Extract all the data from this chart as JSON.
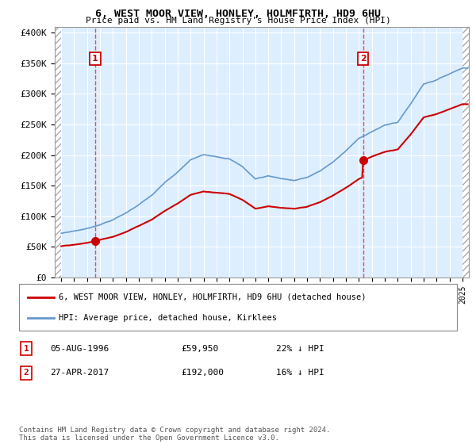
{
  "title": "6, WEST MOOR VIEW, HONLEY, HOLMFIRTH, HD9 6HU",
  "subtitle": "Price paid vs. HM Land Registry's House Price Index (HPI)",
  "sale1_year": 1996.625,
  "sale1_price": 59950,
  "sale2_year": 2017.33,
  "sale2_price": 192000,
  "legend_line1": "6, WEST MOOR VIEW, HONLEY, HOLMFIRTH, HD9 6HU (detached house)",
  "legend_line2": "HPI: Average price, detached house, Kirklees",
  "table_row1_num": "1",
  "table_row1_date": "05-AUG-1996",
  "table_row1_price": "£59,950",
  "table_row1_hpi": "22% ↓ HPI",
  "table_row2_num": "2",
  "table_row2_date": "27-APR-2017",
  "table_row2_price": "£192,000",
  "table_row2_hpi": "16% ↓ HPI",
  "footer": "Contains HM Land Registry data © Crown copyright and database right 2024.\nThis data is licensed under the Open Government Licence v3.0.",
  "xmin": 1993.5,
  "xmax": 2025.5,
  "ymin": 0,
  "ymax": 410000,
  "plot_bg": "#ddeeff",
  "grid_color": "#ffffff",
  "red_line_color": "#cc0000",
  "blue_line_color": "#6699cc",
  "vline_color": "#ff4444",
  "yticks": [
    0,
    50000,
    100000,
    150000,
    200000,
    250000,
    300000,
    350000,
    400000
  ],
  "ytick_labels": [
    "£0",
    "£50K",
    "£100K",
    "£150K",
    "£200K",
    "£250K",
    "£300K",
    "£350K",
    "£400K"
  ],
  "hpi_years": [
    1994,
    1995,
    1996,
    1997,
    1998,
    1999,
    2000,
    2001,
    2002,
    2003,
    2004,
    2005,
    2006,
    2007,
    2008,
    2009,
    2010,
    2011,
    2012,
    2013,
    2014,
    2015,
    2016,
    2017,
    2018,
    2019,
    2020,
    2021,
    2022,
    2023,
    2024,
    2025
  ],
  "hpi_vals": [
    72000,
    76000,
    80000,
    87000,
    95000,
    106000,
    120000,
    135000,
    155000,
    172000,
    192000,
    200000,
    198000,
    195000,
    182000,
    162000,
    167000,
    163000,
    160000,
    165000,
    175000,
    190000,
    208000,
    228000,
    240000,
    250000,
    255000,
    285000,
    318000,
    325000,
    335000,
    345000
  ]
}
